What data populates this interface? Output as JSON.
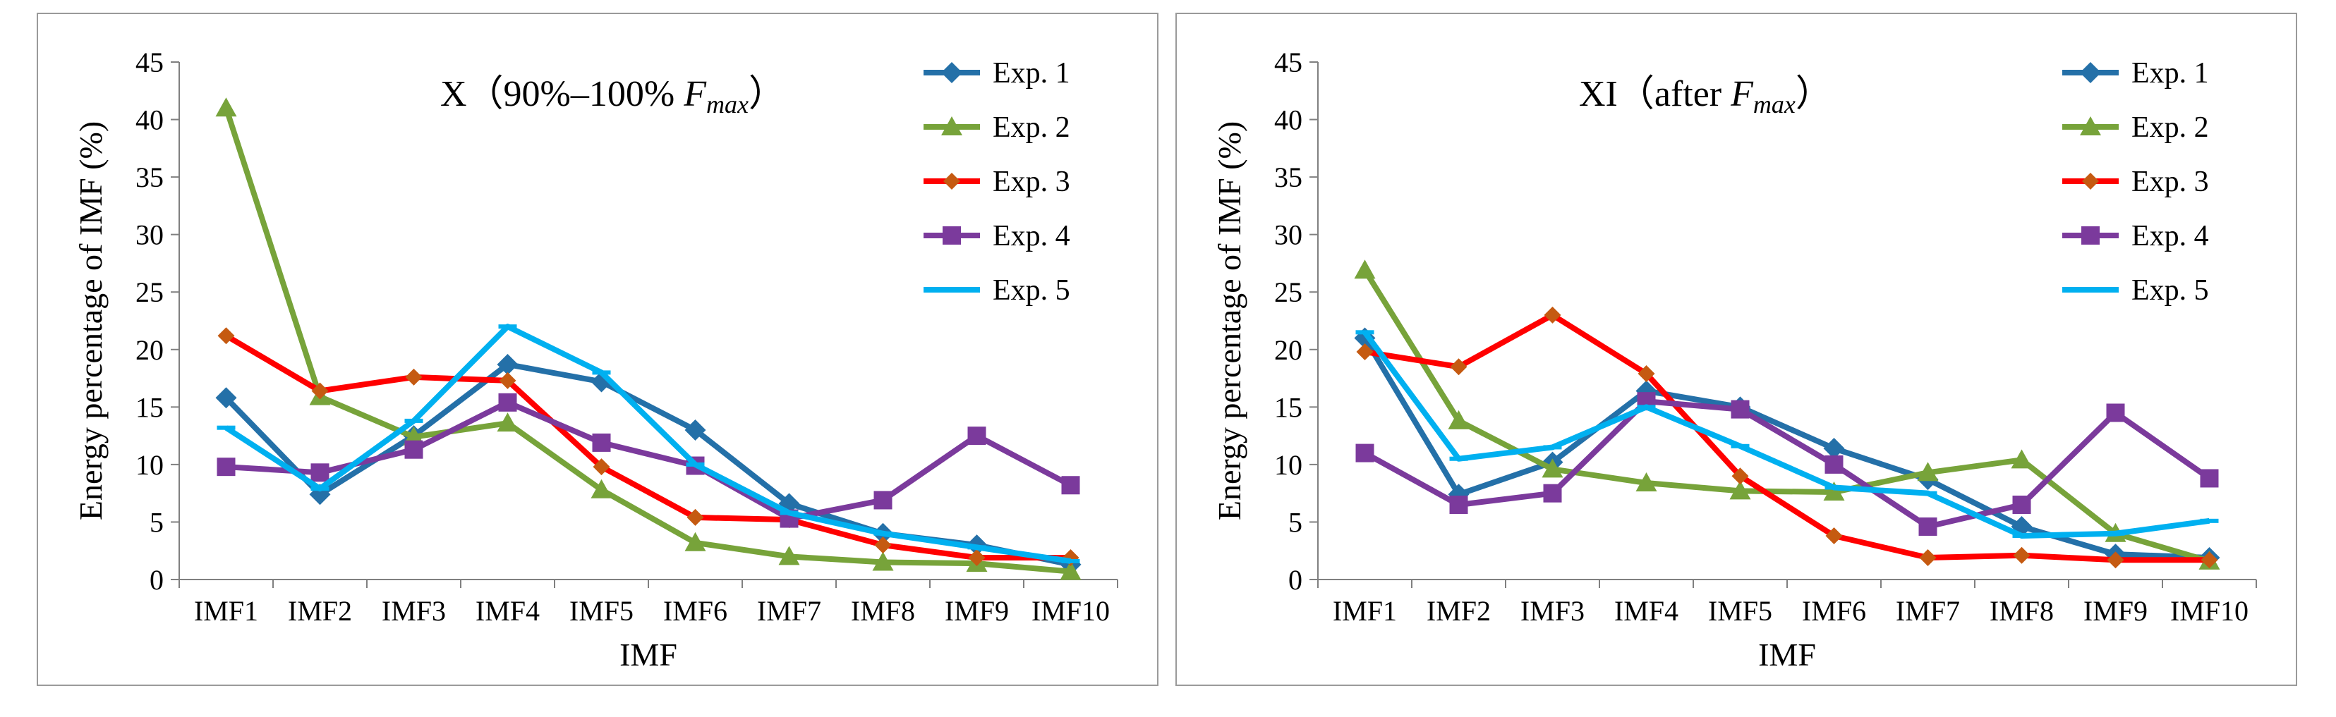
{
  "chart_data": [
    {
      "type": "line",
      "title_prefix": "X（90%–100% ",
      "title_var": "F",
      "title_sub": "max",
      "title_suffix": "）",
      "xlabel": "IMF",
      "ylabel": "Energy percentage of  IMF (%)",
      "ylim": [
        0,
        45
      ],
      "yticks": [
        "0",
        "5",
        "10",
        "15",
        "20",
        "25",
        "30",
        "35",
        "40",
        "45"
      ],
      "categories": [
        "IMF1",
        "IMF2",
        "IMF3",
        "IMF4",
        "IMF5",
        "IMF6",
        "IMF7",
        "IMF8",
        "IMF9",
        "IMF10"
      ],
      "legend_position": "top-right",
      "series": [
        {
          "name": "Exp. 1",
          "color": "#2470a8",
          "marker": "diamond",
          "values": [
            15.8,
            7.4,
            12.5,
            18.7,
            17.2,
            13.0,
            6.6,
            4.0,
            3.0,
            1.3
          ]
        },
        {
          "name": "Exp. 2",
          "color": "#77a33a",
          "marker": "triangle",
          "values": [
            41.0,
            15.9,
            12.4,
            13.6,
            7.8,
            3.2,
            2.0,
            1.5,
            1.4,
            0.7
          ]
        },
        {
          "name": "Exp. 3",
          "color": "#ff0000",
          "marker": "diamond-small",
          "values": [
            21.2,
            16.4,
            17.6,
            17.3,
            9.8,
            5.4,
            5.2,
            3.0,
            1.9,
            1.9
          ]
        },
        {
          "name": "Exp. 4",
          "color": "#7b3a9c",
          "marker": "square",
          "values": [
            9.8,
            9.3,
            11.3,
            15.4,
            11.9,
            9.9,
            5.3,
            6.9,
            12.5,
            8.2
          ]
        },
        {
          "name": "Exp. 5",
          "color": "#00b0f0",
          "marker": "dash",
          "values": [
            13.2,
            7.9,
            13.8,
            22.0,
            18.0,
            10.0,
            5.8,
            4.0,
            2.8,
            1.6
          ]
        }
      ]
    },
    {
      "type": "line",
      "title_prefix": "XI（after ",
      "title_var": "F",
      "title_sub": "max",
      "title_suffix": "）",
      "xlabel": "IMF",
      "ylabel": "Energy percentage of IMF (%)",
      "ylim": [
        0,
        45
      ],
      "yticks": [
        "0",
        "5",
        "10",
        "15",
        "20",
        "25",
        "30",
        "35",
        "40",
        "45"
      ],
      "categories": [
        "IMF1",
        "IMF2",
        "IMF3",
        "IMF4",
        "IMF5",
        "IMF6",
        "IMF7",
        "IMF8",
        "IMF9",
        "IMF10"
      ],
      "legend_position": "top-right",
      "series": [
        {
          "name": "Exp. 1",
          "color": "#2470a8",
          "marker": "diamond",
          "values": [
            21.0,
            7.4,
            10.2,
            16.4,
            15.0,
            11.4,
            8.7,
            4.6,
            2.2,
            1.9
          ]
        },
        {
          "name": "Exp. 2",
          "color": "#77a33a",
          "marker": "triangle",
          "values": [
            26.9,
            13.8,
            9.6,
            8.4,
            7.7,
            7.6,
            9.3,
            10.4,
            4.0,
            1.6
          ]
        },
        {
          "name": "Exp. 3",
          "color": "#ff0000",
          "marker": "diamond-small",
          "values": [
            19.8,
            18.5,
            23.0,
            17.9,
            9.0,
            3.8,
            1.9,
            2.1,
            1.7,
            1.7
          ]
        },
        {
          "name": "Exp. 4",
          "color": "#7b3a9c",
          "marker": "square",
          "values": [
            11.0,
            6.5,
            7.5,
            15.5,
            14.8,
            10.0,
            4.6,
            6.5,
            14.5,
            8.8
          ]
        },
        {
          "name": "Exp. 5",
          "color": "#00b0f0",
          "marker": "dash",
          "values": [
            21.5,
            10.5,
            11.5,
            15.0,
            11.6,
            8.0,
            7.5,
            3.8,
            4.0,
            5.1
          ]
        }
      ]
    }
  ]
}
